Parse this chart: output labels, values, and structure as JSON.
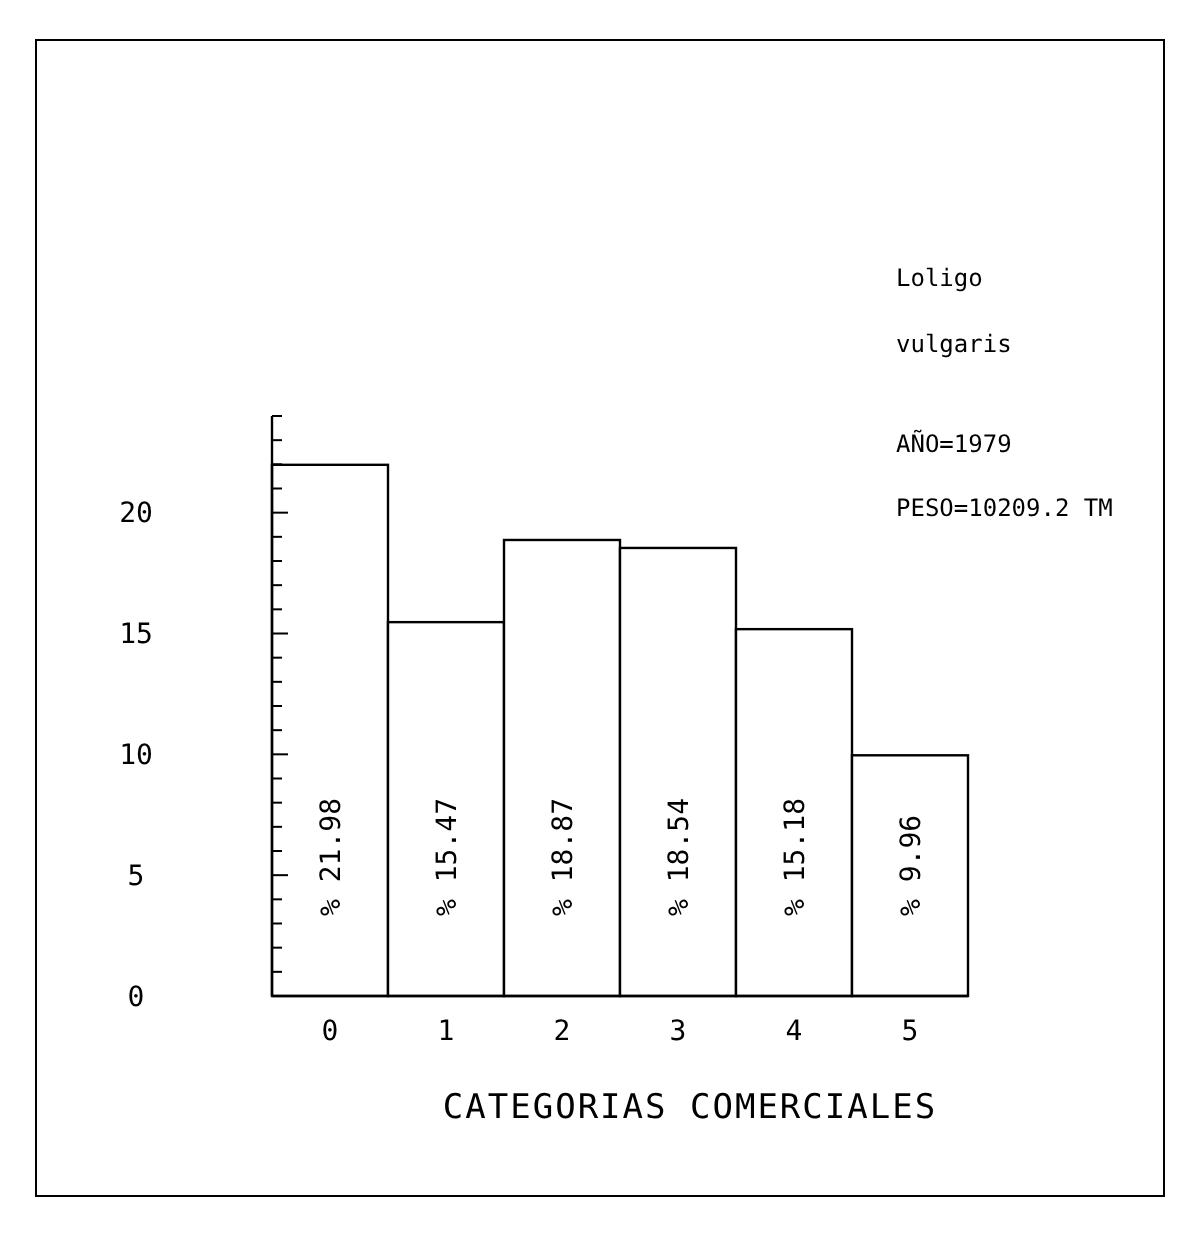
{
  "chart_data": {
    "type": "bar",
    "xlabel": "CATEGORIAS COMERCIALES",
    "categories": [
      "0",
      "1",
      "2",
      "3",
      "4",
      "5"
    ],
    "values": [
      21.98,
      15.47,
      18.87,
      18.54,
      15.18,
      9.96
    ],
    "value_labels": [
      "% 21.98",
      "% 15.47",
      "% 18.87",
      "% 18.54",
      "% 15.18",
      "% 9.96"
    ],
    "color": "#ffffff",
    "ylim": [
      0,
      24
    ],
    "yticks": [
      0,
      {
        "value": 1,
        "label": null
      },
      {
        "value": 2,
        "label": null
      },
      {
        "value": 3,
        "label": null
      },
      {
        "value": 4,
        "label": null
      },
      5,
      {
        "value": 6,
        "label": null
      },
      {
        "value": 7,
        "label": null
      },
      {
        "value": 8,
        "label": null
      },
      {
        "value": 9,
        "label": null
      },
      10,
      {
        "value": 11,
        "label": null
      },
      {
        "value": 12,
        "label": null
      },
      {
        "value": 13,
        "label": null
      },
      {
        "value": 14,
        "label": null
      },
      15,
      {
        "value": 16,
        "label": null
      },
      {
        "value": 17,
        "label": null
      },
      {
        "value": 18,
        "label": null
      },
      {
        "value": 19,
        "label": null
      },
      20,
      {
        "value": 21,
        "label": null
      },
      {
        "value": 22,
        "label": null
      },
      {
        "value": 23,
        "label": null
      },
      {
        "value": 24,
        "label": null
      }
    ],
    "annotations": [
      "Loligo",
      "vulgaris",
      "AÑO=1979",
      "PESO=10209.2 TM"
    ]
  }
}
